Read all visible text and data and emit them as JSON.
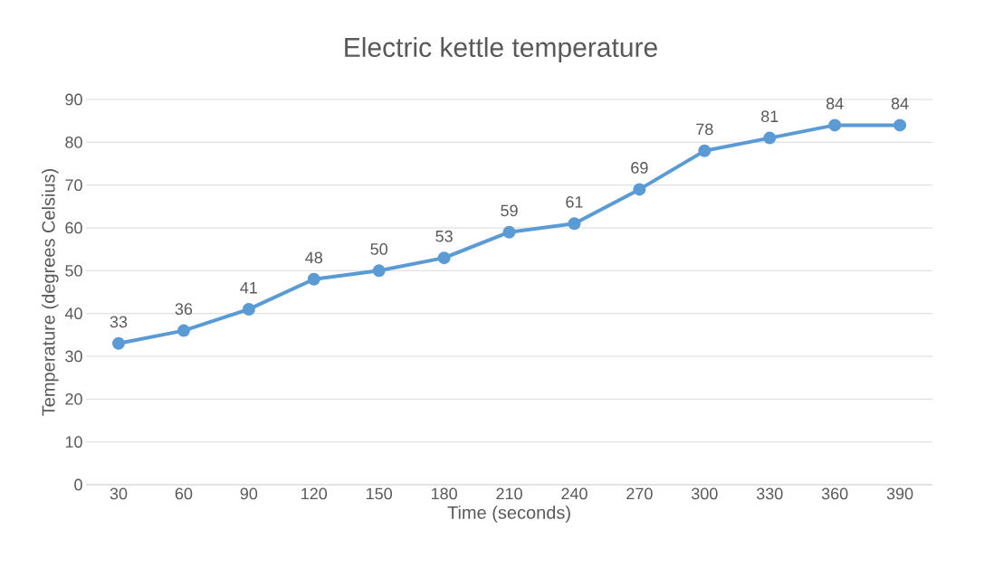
{
  "chart_data": {
    "type": "line",
    "title": "Electric kettle temperature",
    "xlabel": "Time (seconds)",
    "ylabel": "Temperature (degrees Celsius)",
    "categories": [
      "30",
      "60",
      "90",
      "120",
      "150",
      "180",
      "210",
      "240",
      "270",
      "300",
      "330",
      "360",
      "390"
    ],
    "values": [
      33,
      36,
      41,
      48,
      50,
      53,
      59,
      61,
      69,
      78,
      81,
      84,
      84
    ],
    "color": "#5b9bd5",
    "ylim": [
      0,
      90
    ],
    "yticks": [
      0,
      10,
      20,
      30,
      40,
      50,
      60,
      70,
      80,
      90
    ],
    "grid": "y",
    "marker": "circle",
    "line_style": "solid",
    "data_labels": true
  }
}
